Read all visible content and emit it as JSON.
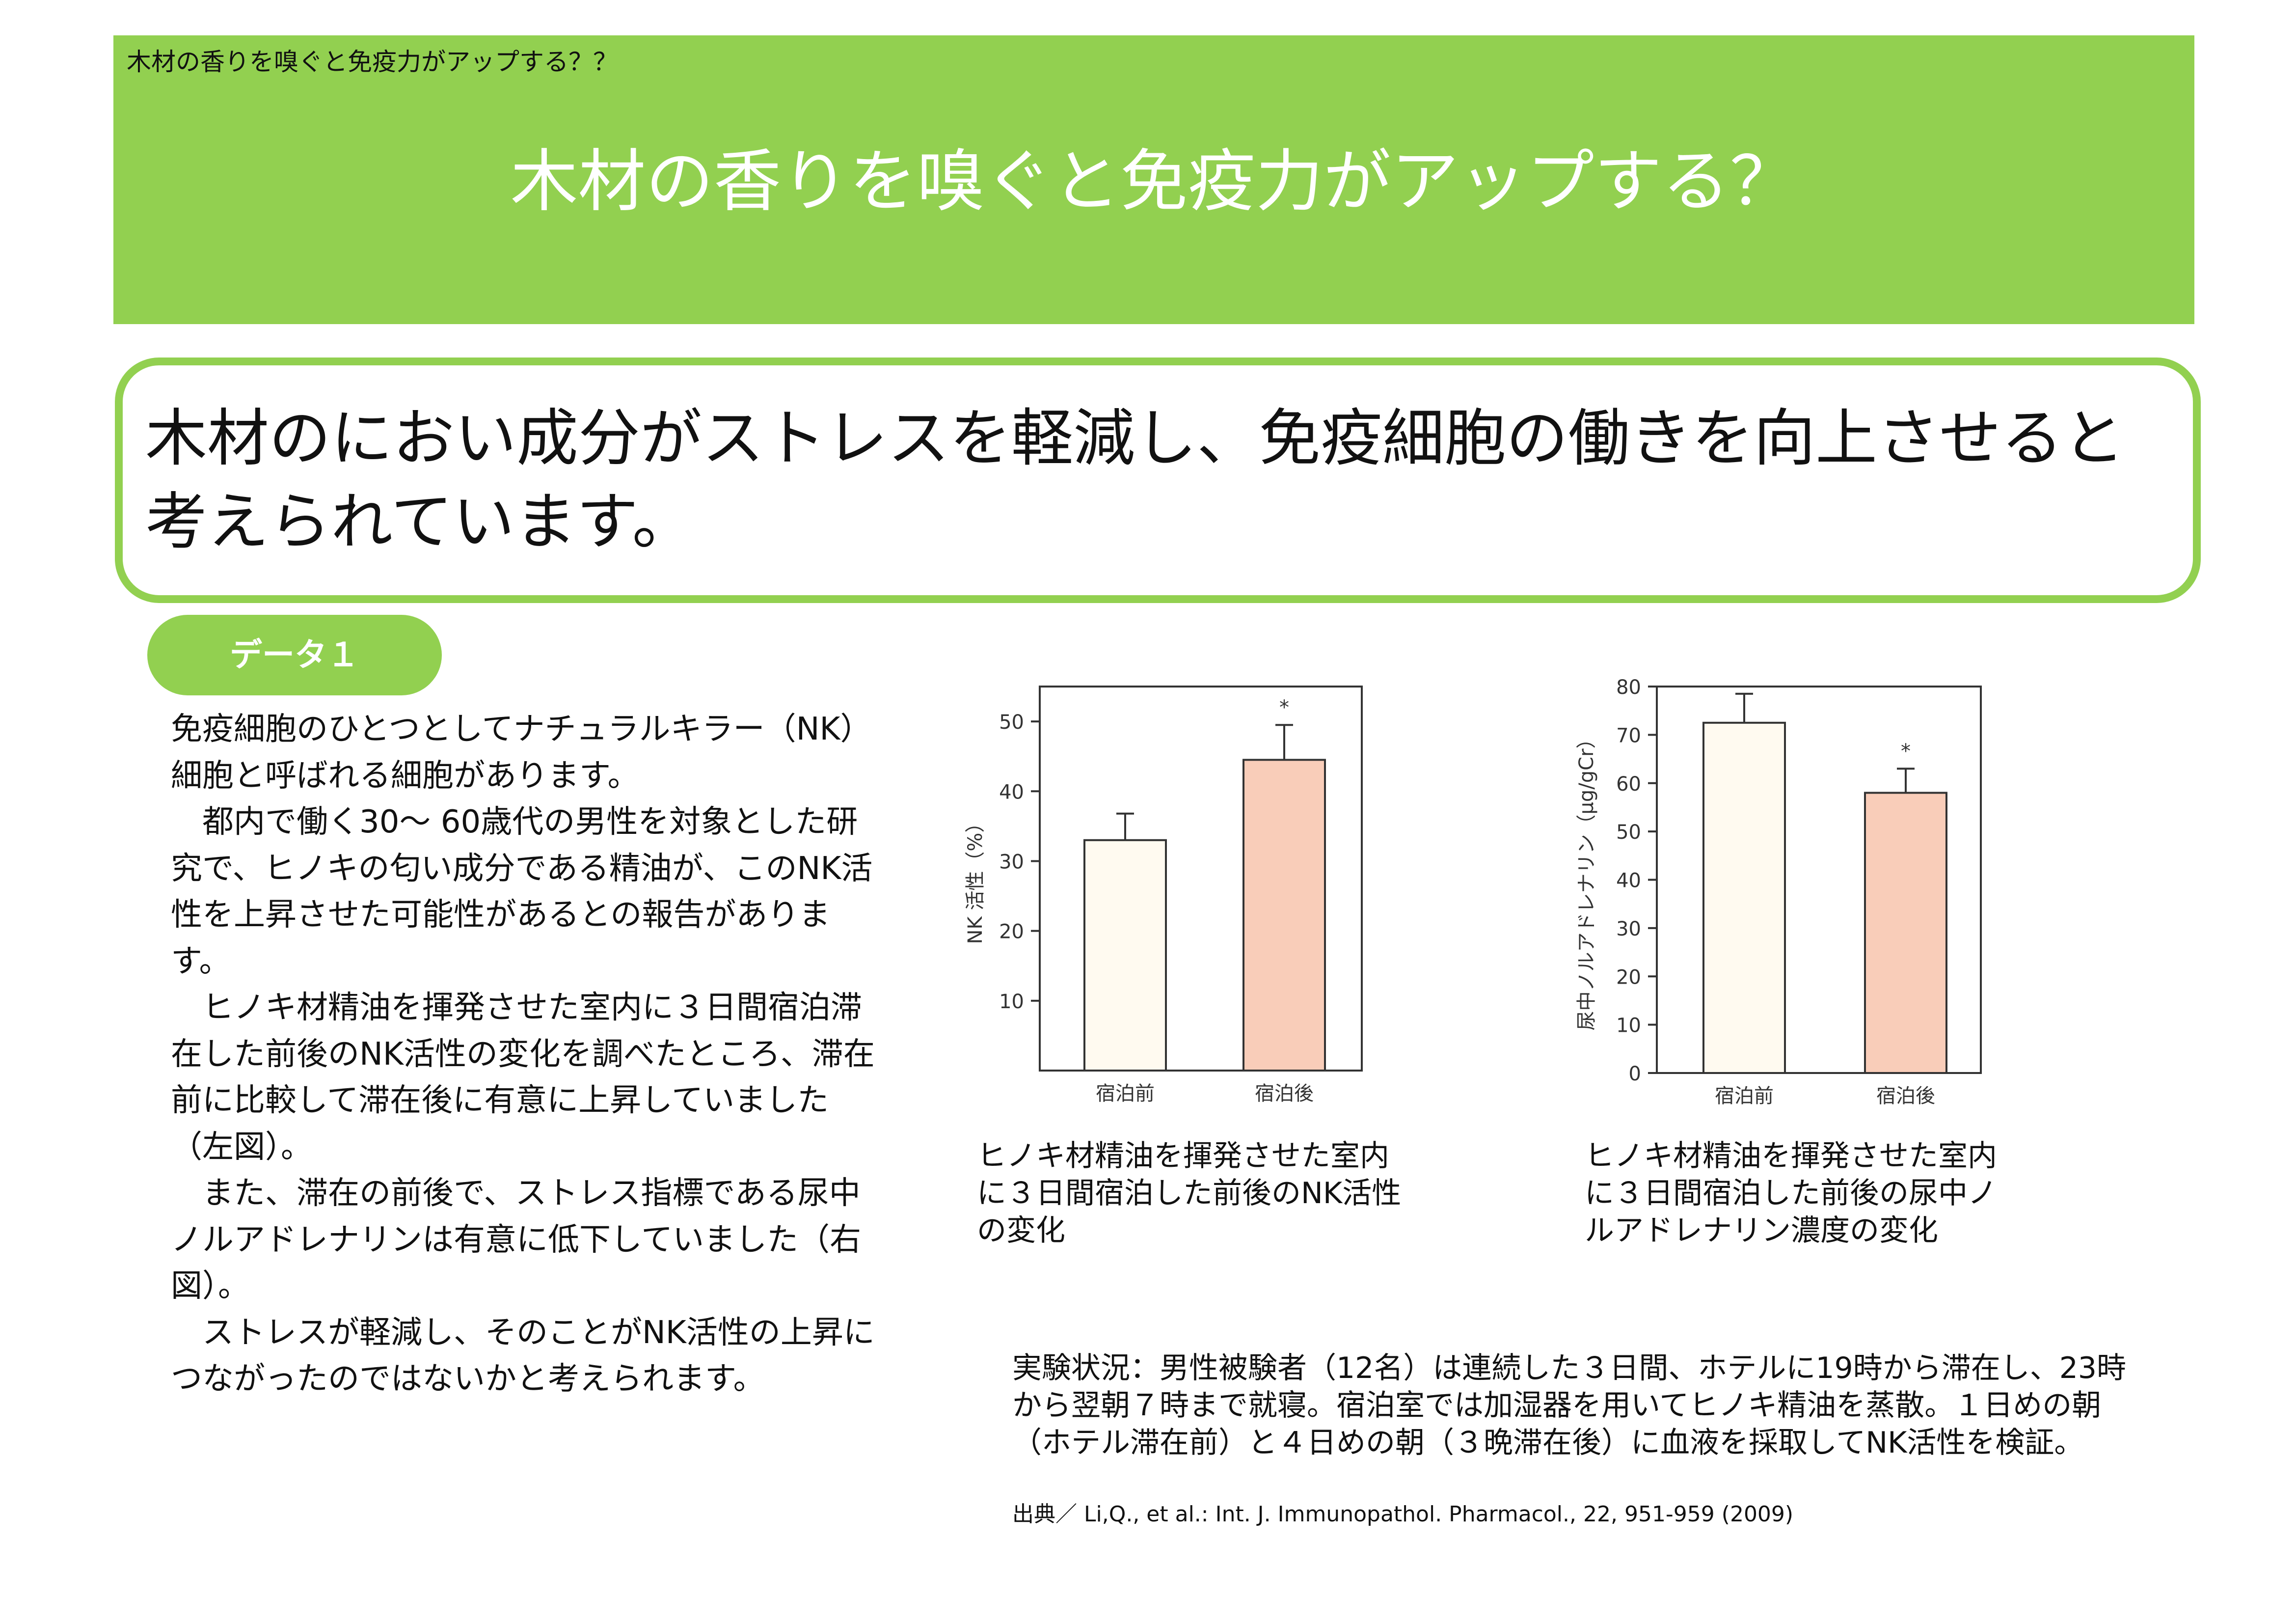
{
  "colors": {
    "accent": "#92d050",
    "bar_before": "#fffaf0",
    "bar_after": "#f9cdb9"
  },
  "header": {
    "small_title": "木材の香りを嗅ぐと免疫力がアップする？？",
    "title": "木材の香りを嗅ぐと免疫力がアップする？"
  },
  "headline": "木材のにおい成分がストレスを軽減し、免疫細胞の働きを向上させると考えられています。",
  "badge": "データ１",
  "body": {
    "paragraphs": [
      "免疫細胞のひとつとしてナチュラルキラー（NK）細胞と呼ばれる細胞があります。",
      "　都内で働く30～ 60歳代の男性を対象とした研究で、ヒノキの匂い成分である精油が、このNK活性を上昇させた可能性があるとの報告があります。",
      "　ヒノキ材精油を揮発させた室内に３日間宿泊滞在した前後のNK活性の変化を調べたところ、滞在前に比較して滞在後に有意に上昇していました（左図）。",
      "　また、滞在の前後で、ストレス指標である尿中ノルアドレナリンは有意に低下していました（右図）。",
      "　ストレスが軽減し、そのことがNK活性の上昇につながったのではないかと考えられます。"
    ]
  },
  "chart_data": [
    {
      "type": "bar",
      "categories": [
        "宿泊前",
        "宿泊後"
      ],
      "values": [
        33,
        44.5
      ],
      "errors": [
        3.8,
        5
      ],
      "significance": [
        "",
        "*"
      ],
      "ylabel": "NK 活性（%）",
      "ylim": [
        0,
        55
      ],
      "yticks": [
        10,
        20,
        30,
        40,
        50
      ],
      "grid": false,
      "caption": "ヒノキ材精油を揮発させた室内に３日間宿泊した前後のNK活性の変化"
    },
    {
      "type": "bar",
      "categories": [
        "宿泊前",
        "宿泊後"
      ],
      "values": [
        72.5,
        58
      ],
      "errors": [
        6,
        5
      ],
      "significance": [
        "",
        "*"
      ],
      "ylabel": "尿中ノルアドレナリン（μg/gCr）",
      "ylim": [
        0,
        80
      ],
      "yticks": [
        0,
        10,
        20,
        30,
        40,
        50,
        60,
        70,
        80
      ],
      "grid": false,
      "caption": "ヒノキ材精油を揮発させた室内に３日間宿泊した前後の尿中ノルアドレナリン濃度の変化"
    }
  ],
  "note": "実験状況：男性被験者（12名）は連続した３日間、ホテルに19時から滞在し、23時から翌朝７時まで就寝。宿泊室では加湿器を用いてヒノキ精油を蒸散。１日めの朝（ホテル滞在前）と４日めの朝（３晩滞在後）に血液を採取してNK活性を検証。",
  "source": "出典／ Li,Q., et al.: Int. J. Immunopathol. Pharmacol., 22, 951-959 (2009)"
}
